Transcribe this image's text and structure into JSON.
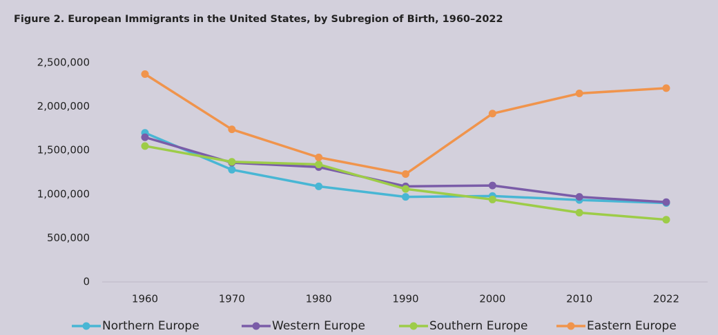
{
  "chart_data": {
    "type": "line",
    "title": "Figure 2. European Immigrants in the United States, by Subregion of Birth, 1960–2022",
    "categories": [
      "1960",
      "1970",
      "1980",
      "1990",
      "2000",
      "2010",
      "2022"
    ],
    "series": [
      {
        "name": "Northern Europe",
        "color": "#48b6d4",
        "values": [
          1700000,
          1280000,
          1090000,
          970000,
          980000,
          935000,
          900000
        ]
      },
      {
        "name": "Western Europe",
        "color": "#7a5ca8",
        "values": [
          1650000,
          1360000,
          1310000,
          1090000,
          1100000,
          970000,
          910000
        ]
      },
      {
        "name": "Southern Europe",
        "color": "#9dcc48",
        "values": [
          1550000,
          1370000,
          1340000,
          1060000,
          940000,
          790000,
          710000
        ]
      },
      {
        "name": "Eastern Europe",
        "color": "#f0944c",
        "values": [
          2370000,
          1740000,
          1420000,
          1230000,
          1920000,
          2150000,
          2210000
        ]
      }
    ],
    "ylim": [
      0,
      2500000
    ],
    "yticks": [
      0,
      {
        "value": 500000,
        "label": "500,000"
      },
      {
        "value": 1000000,
        "label": "1,000,000"
      },
      {
        "value": 1500000,
        "label": "1,500,000"
      },
      {
        "value": 2000000,
        "label": "2,000,000"
      },
      {
        "value": 2500000,
        "label": "2,500,000"
      }
    ],
    "legend": "bottom"
  }
}
